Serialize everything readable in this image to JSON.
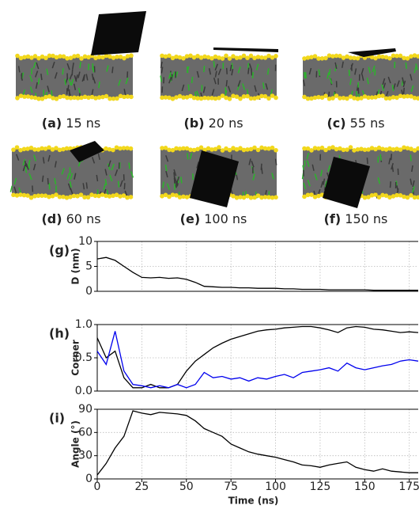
{
  "snapshots": [
    {
      "label": "(a)",
      "time": "15 ns"
    },
    {
      "label": "(b)",
      "time": "20 ns"
    },
    {
      "label": "(c)",
      "time": "55 ns"
    },
    {
      "label": "(d)",
      "time": "60 ns"
    },
    {
      "label": "(e)",
      "time": "100 ns"
    },
    {
      "label": "(f)",
      "time": "150 ns"
    }
  ],
  "chart_data": [
    {
      "type": "line",
      "panel": "(g)",
      "ylabel": "D (nm)",
      "x": [
        0,
        5,
        10,
        15,
        20,
        25,
        30,
        35,
        40,
        45,
        50,
        55,
        60,
        65,
        70,
        75,
        80,
        85,
        90,
        95,
        100,
        105,
        110,
        115,
        120,
        125,
        130,
        135,
        140,
        145,
        150,
        155,
        160,
        165,
        170,
        175,
        180
      ],
      "series": [
        {
          "color": "#000000",
          "values": [
            6.5,
            6.8,
            6.2,
            5.0,
            3.8,
            2.8,
            2.7,
            2.8,
            2.6,
            2.7,
            2.4,
            1.8,
            1.0,
            0.9,
            0.8,
            0.8,
            0.7,
            0.7,
            0.6,
            0.6,
            0.6,
            0.5,
            0.5,
            0.4,
            0.4,
            0.4,
            0.3,
            0.3,
            0.3,
            0.3,
            0.3,
            0.2,
            0.2,
            0.2,
            0.2,
            0.2,
            0.2
          ]
        }
      ],
      "xlim": [
        0,
        180
      ],
      "ylim": [
        0,
        10
      ],
      "yticks": [
        0,
        5,
        10
      ],
      "grid": true
    },
    {
      "type": "line",
      "panel": "(h)",
      "ylabel": "Corner",
      "x": [
        0,
        5,
        10,
        15,
        20,
        25,
        30,
        35,
        40,
        45,
        50,
        55,
        60,
        65,
        70,
        75,
        80,
        85,
        90,
        95,
        100,
        105,
        110,
        115,
        120,
        125,
        130,
        135,
        140,
        145,
        150,
        155,
        160,
        165,
        170,
        175,
        180
      ],
      "series": [
        {
          "color": "#000000",
          "values": [
            0.8,
            0.5,
            0.6,
            0.2,
            0.05,
            0.05,
            0.1,
            0.05,
            0.05,
            0.1,
            0.3,
            0.45,
            0.55,
            0.65,
            0.72,
            0.78,
            0.82,
            0.86,
            0.9,
            0.92,
            0.93,
            0.95,
            0.96,
            0.97,
            0.97,
            0.95,
            0.92,
            0.88,
            0.95,
            0.97,
            0.96,
            0.93,
            0.92,
            0.9,
            0.88,
            0.89,
            0.88
          ]
        },
        {
          "color": "#0000ee",
          "values": [
            0.6,
            0.4,
            0.9,
            0.3,
            0.1,
            0.08,
            0.05,
            0.08,
            0.05,
            0.1,
            0.05,
            0.1,
            0.28,
            0.2,
            0.22,
            0.18,
            0.2,
            0.15,
            0.2,
            0.18,
            0.22,
            0.25,
            0.2,
            0.28,
            0.3,
            0.32,
            0.35,
            0.3,
            0.42,
            0.35,
            0.32,
            0.35,
            0.38,
            0.4,
            0.45,
            0.47,
            0.45
          ]
        }
      ],
      "xlim": [
        0,
        180
      ],
      "ylim": [
        0,
        1
      ],
      "yticks": [
        {
          "value": 0,
          "label": "0.0"
        },
        {
          "value": 0.5,
          "label": "0.5"
        },
        {
          "value": 1,
          "label": "1.0"
        }
      ],
      "grid": true
    },
    {
      "type": "line",
      "panel": "(i)",
      "ylabel": "Angle (°)",
      "xlabel": "Time (ns)",
      "x": [
        0,
        5,
        10,
        15,
        20,
        25,
        30,
        35,
        40,
        45,
        50,
        55,
        60,
        65,
        70,
        75,
        80,
        85,
        90,
        95,
        100,
        105,
        110,
        115,
        120,
        125,
        130,
        135,
        140,
        145,
        150,
        155,
        160,
        165,
        170,
        175,
        180
      ],
      "series": [
        {
          "color": "#000000",
          "values": [
            5,
            20,
            40,
            55,
            88,
            85,
            83,
            86,
            85,
            84,
            82,
            75,
            65,
            60,
            55,
            45,
            40,
            35,
            32,
            30,
            28,
            25,
            22,
            18,
            17,
            15,
            18,
            20,
            22,
            15,
            12,
            10,
            13,
            10,
            9,
            8,
            8
          ]
        }
      ],
      "xlim": [
        0,
        180
      ],
      "ylim": [
        0,
        90
      ],
      "yticks": [
        0,
        30,
        60,
        90
      ],
      "xticks": [
        0,
        25,
        50,
        75,
        100,
        125,
        150,
        175
      ],
      "grid": true
    }
  ]
}
